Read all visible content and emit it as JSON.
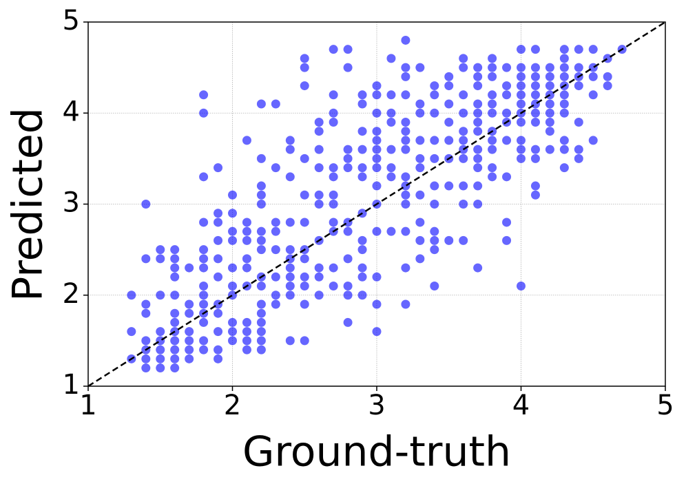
{
  "chart_data": {
    "type": "scatter",
    "x_label": "Ground-truth",
    "y_label": "Predicted",
    "color": "#0000ff",
    "opacity": 0.6,
    "grid": true,
    "identity_line": true,
    "xlim": [
      1,
      5
    ],
    "ylim": [
      1,
      5
    ],
    "xticks": [
      1,
      2,
      3,
      4,
      5
    ],
    "yticks": [
      1,
      2,
      3,
      4,
      5
    ],
    "x": [
      1.3,
      1.3,
      1.3,
      1.4,
      1.4,
      1.4,
      1.4,
      1.4,
      1.4,
      1.4,
      1.4,
      1.5,
      1.5,
      1.5,
      1.5,
      1.5,
      1.5,
      1.5,
      1.5,
      1.6,
      1.6,
      1.6,
      1.6,
      1.6,
      1.6,
      1.6,
      1.6,
      1.6,
      1.6,
      1.6,
      1.6,
      1.7,
      1.7,
      1.7,
      1.7,
      1.7,
      1.7,
      1.7,
      1.8,
      1.8,
      1.8,
      1.8,
      1.8,
      1.8,
      1.8,
      1.8,
      1.8,
      1.8,
      1.8,
      1.8,
      1.8,
      1.8,
      1.9,
      1.9,
      1.9,
      1.9,
      1.9,
      1.9,
      1.9,
      1.9,
      1.9,
      1.9,
      1.9,
      2.0,
      2.0,
      2.0,
      2.0,
      2.0,
      2.0,
      2.0,
      2.0,
      2.0,
      2.0,
      2.1,
      2.1,
      2.1,
      2.1,
      2.1,
      2.1,
      2.1,
      2.1,
      2.1,
      2.1,
      2.1,
      2.2,
      2.2,
      2.2,
      2.2,
      2.2,
      2.2,
      2.2,
      2.2,
      2.2,
      2.2,
      2.2,
      2.2,
      2.2,
      2.2,
      2.2,
      2.2,
      2.3,
      2.3,
      2.3,
      2.3,
      2.3,
      2.3,
      2.3,
      2.3,
      2.4,
      2.4,
      2.4,
      2.4,
      2.4,
      2.4,
      2.4,
      2.4,
      2.4,
      2.4,
      2.4,
      2.5,
      2.5,
      2.5,
      2.5,
      2.5,
      2.5,
      2.5,
      2.5,
      2.5,
      2.5,
      2.5,
      2.5,
      2.6,
      2.6,
      2.6,
      2.6,
      2.6,
      2.6,
      2.6,
      2.6,
      2.6,
      2.6,
      2.7,
      2.7,
      2.7,
      2.7,
      2.7,
      2.7,
      2.7,
      2.7,
      2.7,
      2.7,
      2.7,
      2.7,
      2.8,
      2.8,
      2.8,
      2.8,
      2.8,
      2.8,
      2.8,
      2.8,
      2.8,
      2.8,
      2.8,
      2.9,
      2.9,
      2.9,
      2.9,
      2.9,
      2.9,
      2.9,
      2.9,
      2.9,
      2.9,
      2.9,
      2.9,
      3.0,
      3.0,
      3.0,
      3.0,
      3.0,
      3.0,
      3.0,
      3.0,
      3.0,
      3.0,
      3.0,
      3.0,
      3.0,
      3.0,
      3.1,
      3.1,
      3.1,
      3.1,
      3.1,
      3.1,
      3.1,
      3.1,
      3.2,
      3.2,
      3.2,
      3.2,
      3.2,
      3.2,
      3.2,
      3.2,
      3.2,
      3.2,
      3.2,
      3.2,
      3.2,
      3.2,
      3.2,
      3.3,
      3.3,
      3.3,
      3.3,
      3.3,
      3.3,
      3.3,
      3.3,
      3.3,
      3.3,
      3.4,
      3.4,
      3.4,
      3.4,
      3.4,
      3.4,
      3.4,
      3.4,
      3.4,
      3.4,
      3.4,
      3.5,
      3.5,
      3.5,
      3.5,
      3.5,
      3.5,
      3.5,
      3.5,
      3.6,
      3.6,
      3.6,
      3.6,
      3.6,
      3.6,
      3.6,
      3.6,
      3.6,
      3.6,
      3.6,
      3.7,
      3.7,
      3.7,
      3.7,
      3.7,
      3.7,
      3.7,
      3.7,
      3.7,
      3.7,
      3.7,
      3.7,
      3.7,
      3.8,
      3.8,
      3.8,
      3.8,
      3.8,
      3.8,
      3.8,
      3.8,
      3.8,
      3.8,
      3.8,
      3.9,
      3.9,
      3.9,
      3.9,
      3.9,
      3.9,
      3.9,
      3.9,
      3.9,
      4.0,
      4.0,
      4.0,
      4.0,
      4.0,
      4.0,
      4.0,
      4.0,
      4.0,
      4.0,
      4.0,
      4.0,
      4.1,
      4.1,
      4.1,
      4.1,
      4.1,
      4.1,
      4.1,
      4.1,
      4.1,
      4.1,
      4.1,
      4.1,
      4.2,
      4.2,
      4.2,
      4.2,
      4.2,
      4.2,
      4.2,
      4.2,
      4.2,
      4.3,
      4.3,
      4.3,
      4.3,
      4.3,
      4.3,
      4.3,
      4.3,
      4.3,
      4.3,
      4.3,
      4.4,
      4.4,
      4.4,
      4.4,
      4.4,
      4.4,
      4.4,
      4.5,
      4.5,
      4.5,
      4.5,
      4.5,
      4.6,
      4.6,
      4.6,
      4.7
    ],
    "values": [
      2.0,
      1.6,
      1.3,
      3.0,
      2.4,
      1.9,
      1.8,
      1.5,
      1.4,
      1.3,
      1.2,
      2.5,
      2.4,
      2.0,
      1.6,
      1.5,
      1.4,
      1.3,
      1.2,
      2.5,
      2.4,
      2.3,
      2.2,
      2.0,
      1.8,
      1.7,
      1.6,
      1.5,
      1.4,
      1.3,
      1.2,
      2.3,
      1.9,
      1.8,
      1.6,
      1.5,
      1.4,
      1.3,
      4.2,
      4.0,
      3.3,
      2.8,
      2.5,
      2.4,
      2.3,
      2.1,
      2.0,
      1.9,
      1.8,
      1.7,
      1.5,
      1.4,
      3.4,
      2.9,
      2.8,
      2.6,
      2.4,
      2.2,
      1.9,
      1.8,
      1.6,
      1.4,
      1.3,
      3.1,
      2.9,
      2.7,
      2.6,
      2.3,
      2.1,
      2.0,
      1.7,
      1.6,
      1.5,
      3.7,
      2.8,
      2.7,
      2.6,
      2.4,
      2.3,
      2.1,
      1.7,
      1.6,
      1.5,
      1.4,
      4.1,
      3.5,
      3.2,
      3.1,
      3.0,
      2.7,
      2.6,
      2.5,
      2.2,
      2.1,
      1.9,
      1.8,
      1.7,
      1.6,
      1.5,
      1.4,
      4.1,
      3.4,
      2.8,
      2.7,
      2.5,
      2.2,
      2.0,
      1.9,
      3.7,
      3.6,
      3.3,
      2.8,
      2.5,
      2.4,
      2.3,
      2.2,
      2.1,
      2.0,
      1.5,
      4.6,
      4.5,
      4.3,
      3.5,
      3.1,
      2.8,
      2.5,
      2.4,
      2.2,
      2.1,
      1.9,
      1.5,
      3.9,
      3.8,
      3.6,
      3.4,
      3.1,
      3.0,
      2.6,
      2.3,
      2.2,
      2.0,
      4.7,
      4.2,
      4.0,
      3.9,
      3.4,
      3.3,
      3.1,
      3.0,
      2.8,
      2.7,
      2.3,
      2.1,
      4.7,
      4.5,
      3.6,
      3.5,
      3.4,
      2.8,
      2.7,
      2.4,
      2.1,
      2.0,
      1.7,
      4.2,
      4.1,
      3.8,
      3.6,
      3.4,
      3.3,
      2.9,
      2.6,
      2.5,
      2.3,
      2.2,
      2.0,
      4.3,
      4.2,
      4.0,
      3.8,
      3.7,
      3.6,
      3.5,
      3.4,
      3.2,
      3.0,
      2.7,
      2.2,
      1.9,
      1.6,
      4.6,
      4.2,
      4.0,
      3.9,
      3.6,
      3.4,
      3.3,
      2.7,
      4.8,
      4.5,
      4.4,
      4.2,
      3.9,
      3.8,
      3.7,
      3.6,
      3.3,
      3.2,
      3.1,
      3.0,
      2.7,
      2.3,
      1.9,
      4.5,
      4.1,
      4.0,
      3.7,
      3.5,
      3.4,
      3.1,
      2.8,
      2.6,
      2.4,
      4.3,
      4.2,
      4.0,
      3.7,
      3.5,
      3.2,
      3.0,
      2.7,
      2.6,
      2.5,
      2.1,
      4.4,
      4.3,
      4.1,
      3.9,
      3.7,
      3.5,
      3.2,
      2.6,
      4.6,
      4.5,
      4.2,
      4.0,
      3.8,
      3.7,
      3.6,
      3.5,
      3.2,
      3.0,
      2.6,
      4.5,
      4.4,
      4.3,
      4.1,
      4.0,
      3.9,
      3.8,
      3.6,
      3.5,
      3.4,
      3.2,
      3.0,
      2.3,
      4.6,
      4.5,
      4.4,
      4.2,
      4.1,
      4.0,
      3.8,
      3.7,
      3.6,
      3.4,
      3.3,
      4.5,
      4.3,
      4.2,
      4.0,
      3.9,
      3.7,
      3.3,
      2.8,
      2.6,
      4.7,
      4.5,
      4.4,
      4.3,
      4.2,
      4.1,
      4.0,
      3.9,
      3.7,
      3.6,
      3.5,
      2.1,
      4.7,
      4.5,
      4.4,
      4.3,
      4.2,
      4.1,
      4.0,
      3.9,
      3.6,
      3.5,
      3.2,
      3.1,
      4.5,
      4.4,
      4.3,
      4.2,
      4.1,
      4.0,
      3.9,
      3.8,
      3.6,
      4.7,
      4.6,
      4.5,
      4.4,
      4.3,
      4.2,
      4.1,
      4.0,
      3.7,
      3.6,
      3.4,
      4.7,
      4.5,
      4.4,
      4.3,
      3.9,
      3.6,
      3.5,
      4.7,
      4.5,
      4.4,
      4.2,
      3.7,
      4.6,
      4.4,
      4.3,
      4.7
    ]
  }
}
